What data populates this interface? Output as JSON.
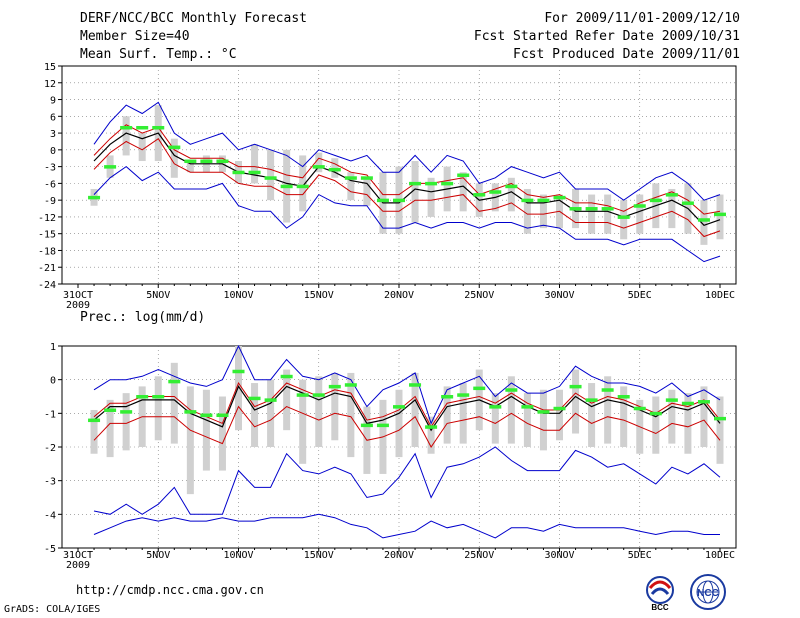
{
  "header": {
    "title": "DERF/NCC/BCC Monthly Forecast",
    "member_size": "Member Size=40",
    "variable1": "Mean Surf. Temp.: °C",
    "period": "For 2009/11/01-2009/12/10",
    "started": "Fcst Started Refer Date 2009/10/31",
    "produced": "Fcst Produced Date 2009/11/01"
  },
  "footer": {
    "url": "http://cmdp.ncc.cma.gov.cn",
    "credit": "GrADS: COLA/IGES",
    "logo_bcc": "BCC",
    "logo_ncc": "NCC"
  },
  "colors": {
    "ensemble_max_min": "#0000cc",
    "spread": "#cc0000",
    "mean": "#000000",
    "observation": "#33ee33",
    "range_bar": "#d0d0d0"
  },
  "chart_data": [
    {
      "type": "line",
      "title": "Mean Surf. Temp.: °C",
      "x_tick_labels": [
        "31OCT",
        "5NOV",
        "10NOV",
        "15NOV",
        "20NOV",
        "25NOV",
        "30NOV",
        "5DEC",
        "10DEC"
      ],
      "x_sublabel": "2009",
      "days": [
        1,
        2,
        3,
        4,
        5,
        6,
        7,
        8,
        9,
        10,
        11,
        12,
        13,
        14,
        15,
        16,
        17,
        18,
        19,
        20,
        21,
        22,
        23,
        24,
        25,
        26,
        27,
        28,
        29,
        30,
        31,
        32,
        33,
        34,
        35,
        36,
        37,
        38,
        39,
        40
      ],
      "ylim": [
        -24,
        15
      ],
      "yticks": [
        15,
        12,
        9,
        6,
        3,
        0,
        -3,
        -6,
        -9,
        -12,
        -15,
        -18,
        -21,
        -24
      ],
      "series": [
        {
          "name": "max",
          "color": "#0000cc",
          "values": [
            1,
            5,
            8,
            6.5,
            8.5,
            3,
            1,
            2,
            3,
            0,
            1,
            0,
            -1,
            -3,
            0,
            -1,
            -2,
            -1,
            -4,
            -4,
            -1,
            -4,
            -1,
            -2,
            -6,
            -5,
            -3,
            -4,
            -5,
            -4,
            -7,
            -7,
            -7,
            -9,
            -7,
            -5,
            -4,
            -6,
            -9,
            -8
          ]
        },
        {
          "name": "upper",
          "color": "#cc0000",
          "values": [
            -1,
            2,
            4.5,
            3,
            4,
            0,
            -1.5,
            -1.5,
            -1.5,
            -3,
            -3,
            -3.5,
            -4.5,
            -5,
            -1.5,
            -2.5,
            -4,
            -4.5,
            -8,
            -8,
            -6,
            -6,
            -5.5,
            -5,
            -8,
            -7,
            -6,
            -8,
            -8.5,
            -8,
            -9.5,
            -9.5,
            -10,
            -11,
            -9.5,
            -8.5,
            -7.5,
            -9,
            -11.5,
            -11
          ]
        },
        {
          "name": "mean",
          "color": "#000000",
          "values": [
            -2,
            1,
            3,
            2,
            3,
            -1,
            -2.5,
            -2.5,
            -2.5,
            -4,
            -4.5,
            -5,
            -6,
            -6.5,
            -3,
            -4,
            -5.5,
            -6,
            -9.5,
            -9.5,
            -7,
            -7.5,
            -7,
            -6.5,
            -9,
            -8.5,
            -7.5,
            -9.5,
            -9.5,
            -9,
            -11,
            -11,
            -11,
            -12,
            -11,
            -10,
            -9,
            -10.5,
            -13.5,
            -12.5
          ]
        },
        {
          "name": "lower",
          "color": "#cc0000",
          "values": [
            -3.5,
            -0.5,
            1.5,
            0,
            2,
            -2.5,
            -4,
            -4,
            -4,
            -6,
            -6.5,
            -6.5,
            -8,
            -8,
            -4.5,
            -5.5,
            -7.5,
            -8,
            -11,
            -11,
            -9,
            -9,
            -8.5,
            -8,
            -11,
            -10.5,
            -9.5,
            -11.5,
            -11.5,
            -11,
            -13,
            -13,
            -13,
            -14,
            -13,
            -12,
            -11,
            -12.5,
            -15.5,
            -14.5
          ]
        },
        {
          "name": "min",
          "color": "#0000cc",
          "values": [
            -8,
            -5,
            -3,
            -5.5,
            -4,
            -7,
            -7,
            -7,
            -6,
            -10,
            -11,
            -11,
            -14,
            -12,
            -8,
            -9.5,
            -10,
            -10,
            -14,
            -14,
            -13,
            -14,
            -13,
            -13,
            -14,
            -13,
            -13,
            -14,
            -13.5,
            -14,
            -16,
            -16,
            -16,
            -17,
            -16,
            -16,
            -16,
            -18,
            -20,
            -19
          ]
        }
      ],
      "bars": {
        "name": "ensemble range",
        "color": "#d0d0d0",
        "high": [
          -7,
          -1,
          6,
          3,
          8,
          2,
          -2,
          -1,
          -1,
          -2,
          1,
          0,
          0,
          -1,
          -0.5,
          -1.5,
          -4,
          -5,
          -4,
          -3,
          -2,
          -5,
          -3,
          -4,
          -6,
          -6,
          -5,
          -7,
          -8,
          -8,
          -7,
          -8,
          -8,
          -9,
          -8,
          -6,
          -7,
          -6,
          -9,
          -8
        ],
        "low": [
          -10,
          -5,
          -1,
          -2,
          -2,
          -5,
          -4,
          -4,
          -4,
          -6,
          -6,
          -9,
          -13,
          -11,
          -4,
          -5,
          -9,
          -10,
          -15,
          -15,
          -13,
          -12,
          -11,
          -11,
          -12,
          -11,
          -11,
          -15,
          -14,
          -14,
          -14,
          -15,
          -15,
          -16,
          -15,
          -14,
          -14,
          -15,
          -17,
          -16
        ]
      },
      "observation": {
        "name": "observation",
        "color": "#33ee33",
        "values": [
          -8.5,
          -3,
          4,
          4,
          4,
          0.5,
          -2,
          -2,
          -2,
          -4,
          -4,
          -5,
          -6.5,
          -6.5,
          -3,
          -3.5,
          -5,
          -5,
          -9,
          -9,
          -6,
          -6,
          -6,
          -4.5,
          -8,
          -7.5,
          -6.5,
          -9,
          -9,
          -8.5,
          -10.5,
          -10.5,
          -10.5,
          -12,
          -10,
          -9,
          -8,
          -9.5,
          -12.5,
          -11.5
        ]
      }
    },
    {
      "type": "line",
      "title": "Prec.: log(mm/d)",
      "x_tick_labels": [
        "31OCT",
        "5NOV",
        "10NOV",
        "15NOV",
        "20NOV",
        "25NOV",
        "30NOV",
        "5DEC",
        "10DEC"
      ],
      "x_sublabel": "2009",
      "days": [
        1,
        2,
        3,
        4,
        5,
        6,
        7,
        8,
        9,
        10,
        11,
        12,
        13,
        14,
        15,
        16,
        17,
        18,
        19,
        20,
        21,
        22,
        23,
        24,
        25,
        26,
        27,
        28,
        29,
        30,
        31,
        32,
        33,
        34,
        35,
        36,
        37,
        38,
        39,
        40
      ],
      "ylim": [
        -5,
        1
      ],
      "yticks": [
        1,
        0,
        -1,
        -2,
        -3,
        -4,
        -5
      ],
      "series": [
        {
          "name": "max",
          "color": "#0000cc",
          "values": [
            -0.3,
            0,
            0,
            0.1,
            0.3,
            0.1,
            -0.1,
            -0.2,
            0,
            1,
            0,
            0,
            0.6,
            0.1,
            0,
            0.2,
            0,
            -0.8,
            -0.3,
            -0.1,
            0.2,
            -1.3,
            -0.3,
            -0.1,
            0.1,
            -0.5,
            -0.1,
            -0.4,
            -0.4,
            -0.2,
            0.4,
            0.1,
            -0.1,
            -0.1,
            -0.2,
            -0.4,
            -0.1,
            -0.5,
            -0.3,
            -0.6
          ]
        },
        {
          "name": "upper",
          "color": "#cc0000",
          "values": [
            -1.1,
            -0.7,
            -0.7,
            -0.5,
            -0.5,
            -0.5,
            -0.9,
            -1.1,
            -1.3,
            -0.1,
            -0.8,
            -0.6,
            -0.1,
            -0.3,
            -0.5,
            -0.3,
            -0.4,
            -1.2,
            -1.1,
            -0.9,
            -0.5,
            -1.4,
            -0.7,
            -0.6,
            -0.5,
            -0.7,
            -0.4,
            -0.7,
            -0.9,
            -0.9,
            -0.4,
            -0.7,
            -0.5,
            -0.6,
            -0.8,
            -1,
            -0.7,
            -0.8,
            -0.6,
            -1.2
          ]
        },
        {
          "name": "mean",
          "color": "#000000",
          "values": [
            -1.2,
            -0.8,
            -0.8,
            -0.6,
            -0.6,
            -0.6,
            -1,
            -1.2,
            -1.4,
            -0.2,
            -0.9,
            -0.7,
            -0.2,
            -0.4,
            -0.6,
            -0.4,
            -0.5,
            -1.3,
            -1.2,
            -1,
            -0.6,
            -1.5,
            -0.8,
            -0.7,
            -0.6,
            -0.8,
            -0.5,
            -0.8,
            -1,
            -1,
            -0.5,
            -0.8,
            -0.6,
            -0.7,
            -0.9,
            -1.1,
            -0.8,
            -0.9,
            -0.7,
            -1.3
          ]
        },
        {
          "name": "lower",
          "color": "#cc0000",
          "values": [
            -1.8,
            -1.3,
            -1.3,
            -1.1,
            -1.1,
            -1.1,
            -1.5,
            -1.7,
            -1.9,
            -0.8,
            -1.4,
            -1.2,
            -0.8,
            -1,
            -1.2,
            -1,
            -1.1,
            -1.8,
            -1.7,
            -1.5,
            -1.1,
            -2,
            -1.3,
            -1.2,
            -1.1,
            -1.3,
            -1,
            -1.3,
            -1.5,
            -1.5,
            -1,
            -1.3,
            -1.1,
            -1.2,
            -1.4,
            -1.6,
            -1.3,
            -1.4,
            -1.2,
            -1.8
          ]
        },
        {
          "name": "min",
          "color": "#0000cc",
          "values": [
            -3.9,
            -4,
            -3.7,
            -4,
            -3.7,
            -3.2,
            -4,
            -4,
            -4,
            -2.7,
            -3.2,
            -3.2,
            -2.2,
            -2.7,
            -2.8,
            -2.6,
            -2.8,
            -3.5,
            -3.4,
            -2.9,
            -2.2,
            -3.5,
            -2.6,
            -2.5,
            -2.3,
            -2,
            -2.4,
            -2.7,
            -2.7,
            -2.7,
            -2.1,
            -2.3,
            -2.6,
            -2.5,
            -2.8,
            -3.1,
            -2.6,
            -2.8,
            -2.5,
            -2.9
          ]
        },
        {
          "name": "ensemble_worst",
          "color": "#0000cc",
          "values": [
            -4.6,
            -4.4,
            -4.2,
            -4.1,
            -4.2,
            -4.1,
            -4.2,
            -4.2,
            -4.1,
            -4.2,
            -4.2,
            -4.1,
            -4.1,
            -4.1,
            -4,
            -4.1,
            -4.3,
            -4.4,
            -4.7,
            -4.6,
            -4.5,
            -4.2,
            -4.4,
            -4.3,
            -4.5,
            -4.7,
            -4.4,
            -4.4,
            -4.5,
            -4.3,
            -4.4,
            -4.4,
            -4.4,
            -4.4,
            -4.5,
            -4.6,
            -4.5,
            -4.5,
            -4.6,
            -4.6
          ]
        }
      ],
      "bars": {
        "name": "ensemble range",
        "color": "#d0d0d0",
        "high": [
          -0.9,
          -0.6,
          -0.4,
          -0.2,
          0.1,
          0.5,
          -0.2,
          -0.3,
          -0.5,
          1,
          -0.1,
          0,
          0.3,
          0,
          0.1,
          0.2,
          0.2,
          -0.8,
          -0.6,
          -0.3,
          0.2,
          -1.1,
          -0.2,
          -0.1,
          0.3,
          -0.4,
          0.1,
          -0.4,
          -0.3,
          -0.3,
          0.3,
          -0.1,
          0.1,
          -0.2,
          -0.6,
          -0.5,
          -0.3,
          -0.4,
          -0.2,
          -0.5
        ],
        "low": [
          -2.2,
          -2.3,
          -2.1,
          -2,
          -1.8,
          -1.9,
          -3.4,
          -2.7,
          -2.7,
          -1.5,
          -2,
          -2,
          -1.5,
          -2.5,
          -2,
          -1.8,
          -2.3,
          -2.8,
          -2.8,
          -2.3,
          -2,
          -2.2,
          -1.9,
          -1.9,
          -1.5,
          -1.9,
          -1.9,
          -2,
          -2.1,
          -1.8,
          -1.6,
          -2,
          -1.9,
          -2,
          -2.2,
          -2.2,
          -1.9,
          -2.2,
          -2,
          -2.5
        ]
      },
      "observation": {
        "name": "observation",
        "color": "#33ee33",
        "values": [
          -1.2,
          -0.9,
          -0.95,
          -0.5,
          -0.5,
          -0.05,
          -0.95,
          -1.05,
          -1.05,
          0.25,
          -0.55,
          -0.6,
          0.1,
          -0.45,
          -0.45,
          -0.2,
          -0.15,
          -1.35,
          -1.35,
          -0.8,
          -0.15,
          -1.4,
          -0.5,
          -0.45,
          -0.25,
          -0.8,
          -0.3,
          -0.8,
          -0.95,
          -0.85,
          -0.2,
          -0.6,
          -0.3,
          -0.5,
          -0.85,
          -1,
          -0.6,
          -0.7,
          -0.65,
          -1.15
        ]
      }
    }
  ]
}
